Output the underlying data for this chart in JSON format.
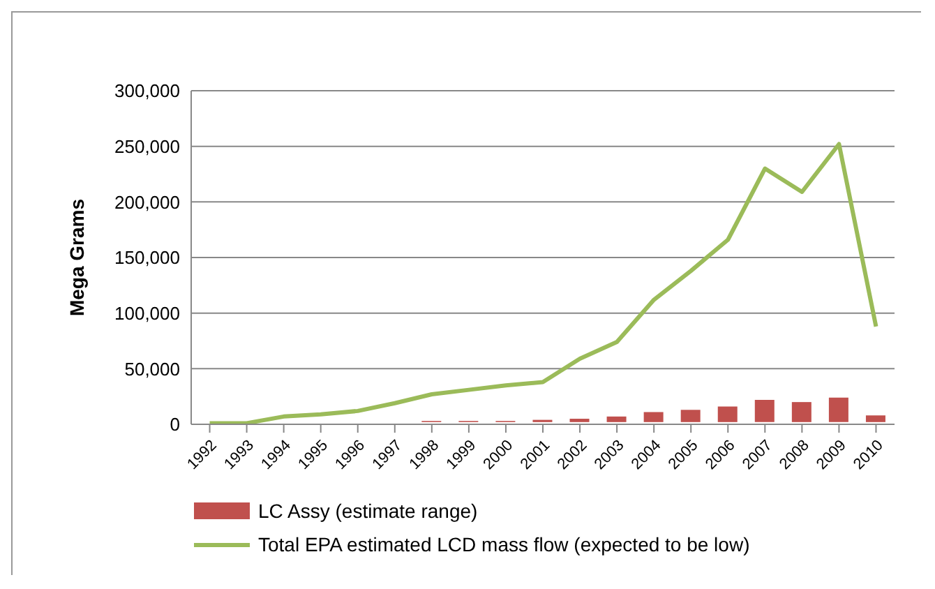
{
  "chart_data": {
    "type": "bar",
    "ylabel": "Mega Grams",
    "categories": [
      "1992",
      "1993",
      "1994",
      "1995",
      "1996",
      "1997",
      "1998",
      "1999",
      "2000",
      "2001",
      "2002",
      "2003",
      "2004",
      "2005",
      "2006",
      "2007",
      "2008",
      "2009",
      "2010"
    ],
    "series": [
      {
        "name": "LC Assy (estimate range)",
        "color": "#c0504d",
        "base": [
          null,
          null,
          null,
          null,
          null,
          null,
          2000,
          2000,
          2000,
          2000,
          2000,
          2000,
          2000,
          2000,
          2000,
          2000,
          2000,
          2000,
          2000
        ],
        "values": [
          null,
          null,
          null,
          null,
          null,
          null,
          1000,
          1000,
          1000,
          2000,
          3000,
          5000,
          9000,
          11000,
          14000,
          20000,
          18000,
          22000,
          6000
        ]
      },
      {
        "name": "Total EPA estimated LCD mass flow (expected to be low)",
        "type": "line",
        "color": "#9bbb59",
        "values": [
          1000,
          1000,
          7000,
          9000,
          12000,
          19000,
          27000,
          31000,
          35000,
          38000,
          59000,
          74000,
          112000,
          138000,
          166000,
          230000,
          209000,
          252000,
          88000
        ]
      }
    ],
    "ylim": [
      0,
      300000
    ],
    "yticks": [
      0,
      {
        "value": 50000,
        "label": "50,000"
      },
      {
        "value": 100000,
        "label": "100,000"
      },
      {
        "value": 150000,
        "label": "150,000"
      },
      {
        "value": 200000,
        "label": "200,000"
      },
      {
        "value": 250000,
        "label": "250,000"
      },
      {
        "value": 300000,
        "label": "300,000"
      }
    ],
    "grid": "y",
    "legend": "bottom",
    "marker": "none"
  }
}
